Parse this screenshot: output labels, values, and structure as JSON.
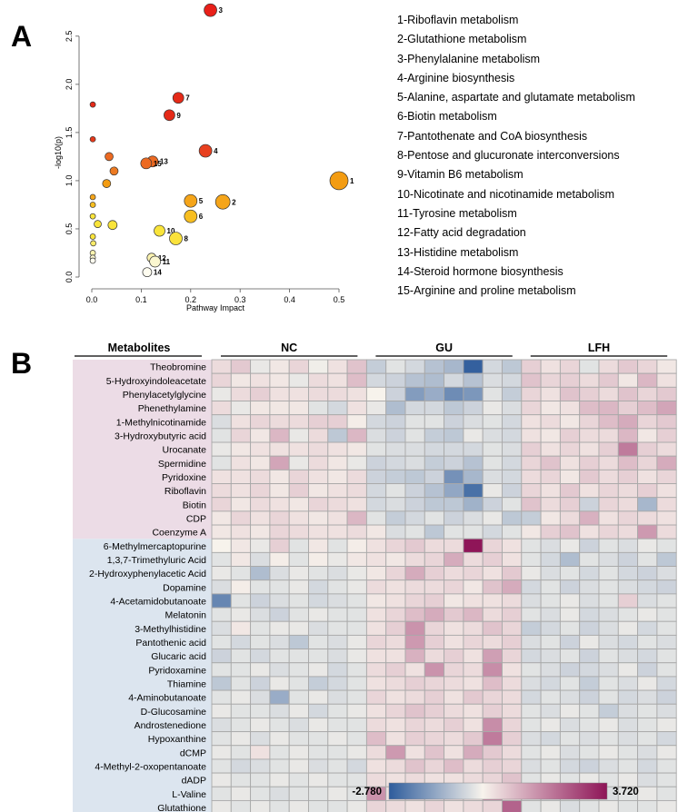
{
  "panels": {
    "a_letter": "A",
    "b_letter": "B"
  },
  "chart_data": [
    {
      "type": "scatter",
      "xlabel": "Pathway Impact",
      "ylabel": "-log10(p)",
      "xlim": [
        0,
        0.5
      ],
      "ylim": [
        0,
        2.8
      ],
      "x_ticks": [
        "0.0",
        "0.1",
        "0.2",
        "0.3",
        "0.4",
        "0.5"
      ],
      "y_ticks": [
        "0.0",
        "0.5",
        "1.0",
        "1.5",
        "2.0",
        "2.5"
      ],
      "grid": false,
      "points": [
        {
          "label": "1",
          "x": 0.5,
          "y": 1.0,
          "size": 10,
          "color": "#F39C12"
        },
        {
          "label": "2",
          "x": 0.265,
          "y": 0.78,
          "size": 8,
          "color": "#F5A51A"
        },
        {
          "label": "3",
          "x": 0.24,
          "y": 2.77,
          "size": 7,
          "color": "#E8201A"
        },
        {
          "label": "4",
          "x": 0.23,
          "y": 1.31,
          "size": 7,
          "color": "#E8401F"
        },
        {
          "label": "5",
          "x": 0.2,
          "y": 0.79,
          "size": 7,
          "color": "#F5A51A"
        },
        {
          "label": "6",
          "x": 0.2,
          "y": 0.63,
          "size": 7,
          "color": "#F7BE21"
        },
        {
          "label": "7",
          "x": 0.175,
          "y": 1.86,
          "size": 6,
          "color": "#E52A18"
        },
        {
          "label": "8",
          "x": 0.17,
          "y": 0.4,
          "size": 7,
          "color": "#FAE23C"
        },
        {
          "label": "9",
          "x": 0.157,
          "y": 1.68,
          "size": 6,
          "color": "#E52A18"
        },
        {
          "label": "10",
          "x": 0.137,
          "y": 0.48,
          "size": 6,
          "color": "#F9E43A"
        },
        {
          "label": "11",
          "x": 0.128,
          "y": 0.16,
          "size": 6,
          "color": "#FBF7D0"
        },
        {
          "label": "12",
          "x": 0.121,
          "y": 0.2,
          "size": 5,
          "color": "#FBF3B0"
        },
        {
          "label": "13",
          "x": 0.123,
          "y": 1.2,
          "size": 6,
          "color": "#EC6A22"
        },
        {
          "label": "14",
          "x": 0.112,
          "y": 0.05,
          "size": 5,
          "color": "#FFFDF0"
        },
        {
          "label": "15",
          "x": 0.11,
          "y": 1.18,
          "size": 6,
          "color": "#EC6A22"
        },
        {
          "label": "",
          "x": 0.045,
          "y": 1.1,
          "size": 4.5,
          "color": "#EC7A22"
        },
        {
          "label": "",
          "x": 0.035,
          "y": 1.25,
          "size": 4.5,
          "color": "#EC6A22"
        },
        {
          "label": "",
          "x": 0.03,
          "y": 0.97,
          "size": 4.5,
          "color": "#F39C12"
        },
        {
          "label": "",
          "x": 0.042,
          "y": 0.54,
          "size": 5,
          "color": "#F9E43A"
        },
        {
          "label": "",
          "x": 0.012,
          "y": 0.55,
          "size": 4,
          "color": "#F9E43A"
        },
        {
          "label": "",
          "x": 0.002,
          "y": 1.79,
          "size": 3,
          "color": "#E52A18"
        },
        {
          "label": "",
          "x": 0.002,
          "y": 1.43,
          "size": 3,
          "color": "#E5381A"
        },
        {
          "label": "",
          "x": 0.002,
          "y": 0.83,
          "size": 3,
          "color": "#F5A51A"
        },
        {
          "label": "",
          "x": 0.002,
          "y": 0.75,
          "size": 3,
          "color": "#F7BE21"
        },
        {
          "label": "",
          "x": 0.002,
          "y": 0.63,
          "size": 3,
          "color": "#F9E43A"
        },
        {
          "label": "",
          "x": 0.002,
          "y": 0.42,
          "size": 3,
          "color": "#F9E43A"
        },
        {
          "label": "",
          "x": 0.003,
          "y": 0.35,
          "size": 3,
          "color": "#FAEB6A"
        },
        {
          "label": "",
          "x": 0.002,
          "y": 0.25,
          "size": 3,
          "color": "#FBF3B0"
        },
        {
          "label": "",
          "x": 0.002,
          "y": 0.2,
          "size": 3,
          "color": "#FBF7D0"
        },
        {
          "label": "",
          "x": 0.002,
          "y": 0.17,
          "size": 3,
          "color": "#FFFDF0"
        }
      ],
      "legend_entries": [
        "1-Riboflavin metabolism",
        "2-Glutathione metabolism",
        "3-Phenylalanine metabolism",
        "4-Arginine biosynthesis",
        "5-Alanine, aspartate and glutamate metabolism",
        "6-Biotin metabolism",
        "7-Pantothenate and CoA biosynthesis",
        "8-Pentose and glucuronate interconversions",
        "9-Vitamin B6 metabolism",
        "10-Nicotinate and nicotinamide metabolism",
        "11-Tyrosine metabolism",
        "12-Fatty acid degradation",
        "13-Histidine metabolism",
        "14-Steroid hormone biosynthesis",
        "15-Arginine and proline metabolism"
      ]
    },
    {
      "type": "heatmap",
      "row_header": "Metabolites",
      "groups": [
        "NC",
        "GU",
        "LFH"
      ],
      "columns_per_group": 8,
      "rows": [
        "Theobromine",
        "5-Hydroxyindoleacetate",
        "Phenylacetylglycine",
        "Phenethylamine",
        "1-Methylnicotinamide",
        "3-Hydroxybutyric acid",
        "Urocanate",
        "Spermidine",
        "Pyridoxine",
        "Riboflavin",
        "Biotin",
        "CDP",
        "Coenzyme A",
        "6-Methylmercaptopurine",
        "1,3,7-Trimethyluric Acid",
        "2-Hydroxyphenylacetic Acid",
        "Dopamine",
        "4-Acetamidobutanoate",
        "Melatonin",
        "3-Methylhistidine",
        "Pantothenic acid",
        "Glucaric acid",
        "Pyridoxamine",
        "Thiamine",
        "4-Aminobutanoate",
        "D-Glucosamine",
        "Androstenedione",
        "Hypoxanthine",
        "dCMP",
        "4-Methyl-2-oxopentanoate",
        "dADP",
        "L-Valine",
        "Glutathione"
      ],
      "row_group_split": 13,
      "row_group_colors": [
        "#ECDCE6",
        "#DCE5EF"
      ],
      "colorscale": {
        "min": -2.78,
        "max": 3.72,
        "min_label": "-2.780",
        "max_label": "3.720",
        "low_color": "#2E5C9C",
        "mid_color": "#F7F3EC",
        "high_color": "#8E1457"
      },
      "values": [
        [
          0.4,
          0.7,
          -0.2,
          0.2,
          0.5,
          -0.1,
          0.3,
          0.8,
          -0.7,
          -0.3,
          -0.5,
          -0.9,
          -1.1,
          -2.7,
          -0.5,
          -0.8,
          0.6,
          0.3,
          0.5,
          -0.3,
          0.4,
          0.7,
          0.5,
          0.2
        ],
        [
          0.5,
          0.2,
          0.3,
          0.2,
          -0.2,
          0.4,
          0.3,
          0.9,
          -0.5,
          -0.6,
          -0.9,
          -1.0,
          -0.5,
          -0.9,
          -0.4,
          -0.5,
          0.8,
          0.5,
          0.6,
          0.4,
          0.7,
          0.2,
          1.0,
          0.3
        ],
        [
          -0.2,
          0.4,
          0.6,
          0.3,
          0.3,
          0.4,
          0.4,
          0.3,
          0.0,
          -0.6,
          -1.6,
          -1.3,
          -1.9,
          -1.7,
          -0.3,
          -0.7,
          0.5,
          0.3,
          0.8,
          0.6,
          0.4,
          0.8,
          0.5,
          0.7
        ],
        [
          0.4,
          -0.2,
          0.2,
          0.2,
          0.2,
          -0.3,
          -0.5,
          0.3,
          -0.2,
          -1.0,
          -0.5,
          -0.5,
          -0.8,
          -0.6,
          -0.2,
          -0.4,
          0.5,
          0.2,
          0.3,
          0.9,
          1.0,
          0.6,
          0.9,
          1.3
        ],
        [
          -0.4,
          0.3,
          0.5,
          0.4,
          0.4,
          0.6,
          0.6,
          0.1,
          -0.5,
          -0.6,
          -0.3,
          -0.3,
          -0.6,
          -0.4,
          -0.3,
          -0.5,
          0.3,
          0.4,
          0.2,
          0.5,
          0.9,
          1.2,
          0.5,
          0.7
        ],
        [
          -0.3,
          0.5,
          0.2,
          1.0,
          -0.2,
          0.4,
          -0.8,
          1.0,
          -0.4,
          -0.6,
          -0.3,
          -0.7,
          -0.8,
          -0.2,
          -0.4,
          -0.5,
          0.3,
          0.2,
          0.6,
          0.4,
          0.4,
          1.0,
          0.2,
          0.6
        ],
        [
          -0.2,
          0.2,
          0.3,
          0.3,
          0.3,
          0.4,
          0.3,
          0.2,
          -0.3,
          -0.4,
          -0.4,
          -0.5,
          -0.5,
          -0.5,
          -0.3,
          -0.4,
          0.6,
          0.3,
          0.5,
          0.3,
          0.6,
          2.0,
          0.6,
          0.4
        ],
        [
          -0.3,
          0.3,
          0.2,
          1.3,
          -0.2,
          0.4,
          0.2,
          -0.2,
          -0.6,
          -0.5,
          -0.4,
          -0.7,
          -0.6,
          -0.9,
          -0.3,
          -0.5,
          0.5,
          0.8,
          0.3,
          0.6,
          0.4,
          0.9,
          0.5,
          1.2
        ],
        [
          0.3,
          0.3,
          0.4,
          0.2,
          0.5,
          0.3,
          0.2,
          0.4,
          -0.6,
          -0.7,
          -0.8,
          -0.6,
          -1.8,
          -1.1,
          -0.4,
          -0.5,
          0.4,
          0.5,
          0.2,
          0.7,
          0.4,
          0.6,
          0.3,
          0.5
        ],
        [
          0.4,
          0.3,
          0.5,
          0.2,
          0.6,
          0.2,
          0.3,
          0.4,
          -0.5,
          -0.3,
          -0.6,
          -0.9,
          -1.4,
          -2.4,
          -0.2,
          -0.6,
          0.5,
          0.3,
          0.7,
          0.3,
          0.5,
          0.4,
          0.6,
          0.3
        ],
        [
          0.5,
          0.2,
          0.4,
          0.3,
          0.2,
          0.5,
          0.4,
          0.3,
          -0.5,
          -0.4,
          -0.6,
          -0.8,
          -0.8,
          -1.2,
          -0.6,
          -0.3,
          0.8,
          0.4,
          0.6,
          -0.6,
          0.5,
          0.4,
          -1.1,
          0.4
        ],
        [
          0.2,
          0.5,
          0.3,
          0.5,
          0.3,
          0.2,
          0.3,
          1.0,
          -0.3,
          -0.7,
          -0.5,
          -0.3,
          -0.6,
          -0.4,
          -0.2,
          -0.8,
          -0.7,
          0.2,
          0.4,
          1.1,
          0.3,
          0.5,
          0.4,
          0.3
        ],
        [
          0.2,
          0.3,
          0.2,
          0.5,
          0.4,
          0.3,
          0.3,
          0.4,
          0.2,
          -0.4,
          -0.3,
          -0.8,
          -0.3,
          -0.3,
          -0.5,
          -0.3,
          0.2,
          0.6,
          0.8,
          0.3,
          0.5,
          0.4,
          1.5,
          0.4
        ],
        [
          0.0,
          0.2,
          -0.2,
          0.6,
          -0.3,
          0.2,
          -0.3,
          0.1,
          0.3,
          0.5,
          0.7,
          0.4,
          0.4,
          3.7,
          0.5,
          0.3,
          -0.3,
          -0.4,
          -0.2,
          -0.6,
          -0.3,
          -0.4,
          -0.2,
          -0.3
        ],
        [
          -0.3,
          0.2,
          -0.4,
          0.1,
          -0.3,
          0.1,
          -0.2,
          0.2,
          0.3,
          0.2,
          0.4,
          0.5,
          1.2,
          0.4,
          0.6,
          0.3,
          -0.3,
          -0.5,
          -1.0,
          -0.3,
          -0.4,
          -0.6,
          -0.3,
          -0.8
        ],
        [
          -0.2,
          -0.3,
          -1.0,
          -0.4,
          -0.2,
          -0.3,
          -0.4,
          -0.2,
          0.2,
          0.5,
          1.2,
          0.6,
          0.4,
          0.5,
          0.3,
          0.7,
          -0.2,
          -0.4,
          -0.3,
          -0.5,
          -0.3,
          -0.5,
          -0.6,
          -0.4
        ],
        [
          -0.4,
          0.1,
          -0.3,
          -0.3,
          -0.2,
          -0.5,
          -0.3,
          -0.2,
          0.4,
          0.3,
          0.4,
          0.4,
          0.5,
          0.2,
          0.8,
          1.2,
          -0.5,
          -0.3,
          -0.6,
          -0.4,
          -0.3,
          -0.4,
          -0.5,
          -0.6
        ],
        [
          -2.0,
          -0.3,
          -0.6,
          -0.4,
          -0.3,
          -0.5,
          -0.4,
          -0.3,
          0.2,
          0.3,
          0.5,
          0.6,
          0.2,
          0.3,
          0.3,
          0.4,
          -0.4,
          -0.3,
          -0.2,
          -0.4,
          -0.3,
          0.6,
          -0.4,
          -0.3
        ],
        [
          -0.3,
          -0.2,
          -0.4,
          -0.6,
          -0.3,
          -0.2,
          -0.3,
          -0.3,
          0.3,
          0.5,
          0.9,
          1.2,
          0.7,
          1.0,
          0.4,
          0.6,
          -0.3,
          -0.4,
          -0.2,
          -0.5,
          -0.4,
          -0.3,
          -0.2,
          -0.3
        ],
        [
          -0.4,
          0.2,
          -0.3,
          -0.2,
          -0.2,
          -0.4,
          -0.3,
          -0.3,
          0.3,
          0.6,
          1.6,
          0.5,
          0.3,
          0.4,
          0.8,
          0.5,
          -0.7,
          -0.5,
          -0.3,
          -0.6,
          -0.4,
          -0.2,
          -0.5,
          -0.3
        ],
        [
          -0.3,
          -0.5,
          -0.3,
          -0.4,
          -0.8,
          -0.3,
          -0.4,
          -0.2,
          0.5,
          0.4,
          1.5,
          0.6,
          0.3,
          0.5,
          0.4,
          0.6,
          -0.4,
          -0.3,
          -0.6,
          -0.2,
          -0.4,
          -0.5,
          -0.3,
          -0.4
        ],
        [
          -0.6,
          -0.3,
          -0.5,
          -0.3,
          -0.3,
          -0.3,
          -0.4,
          -0.2,
          0.3,
          0.3,
          1.1,
          0.4,
          0.6,
          0.3,
          1.4,
          0.5,
          -0.5,
          -0.4,
          -0.3,
          -0.6,
          -0.3,
          -0.4,
          -0.5,
          -0.3
        ],
        [
          -0.3,
          -0.3,
          -0.2,
          -0.4,
          -0.3,
          -0.2,
          -0.5,
          -0.3,
          0.4,
          0.6,
          0.3,
          1.6,
          0.5,
          0.4,
          1.7,
          0.3,
          -0.3,
          -0.4,
          -0.6,
          -0.5,
          -0.4,
          -0.2,
          -0.6,
          -0.3
        ],
        [
          -0.8,
          -0.3,
          -0.6,
          -0.2,
          -0.3,
          -0.7,
          -0.5,
          -0.3,
          0.3,
          0.4,
          0.6,
          0.5,
          0.4,
          0.3,
          0.9,
          0.4,
          -0.4,
          -0.5,
          -0.3,
          -0.7,
          -0.3,
          -0.4,
          -0.2,
          -0.5
        ],
        [
          -0.3,
          -0.2,
          -0.4,
          -1.3,
          -0.3,
          -0.2,
          -0.4,
          -0.3,
          0.5,
          0.3,
          0.4,
          0.6,
          0.3,
          0.7,
          0.5,
          0.4,
          -0.5,
          -0.3,
          -0.4,
          -0.6,
          -0.3,
          -0.5,
          -0.4,
          -0.6
        ],
        [
          -0.2,
          -0.3,
          -0.3,
          -0.4,
          -0.2,
          -0.5,
          -0.3,
          -0.2,
          0.3,
          0.5,
          0.8,
          0.6,
          0.4,
          0.3,
          0.6,
          0.4,
          -0.3,
          -0.4,
          -0.2,
          -0.3,
          -0.7,
          -0.4,
          -0.3,
          -0.4
        ],
        [
          -0.4,
          -0.3,
          -0.2,
          -0.3,
          -0.4,
          -0.2,
          -0.3,
          -0.3,
          0.4,
          0.3,
          0.5,
          0.4,
          0.6,
          0.3,
          1.7,
          0.5,
          -0.3,
          -0.2,
          -0.4,
          -0.3,
          -0.2,
          -0.4,
          -0.3,
          -0.2
        ],
        [
          -0.3,
          -0.2,
          -0.4,
          -0.2,
          -0.3,
          -0.3,
          -0.2,
          -0.3,
          0.9,
          0.3,
          0.6,
          0.5,
          0.4,
          0.7,
          2.0,
          0.6,
          -0.4,
          -0.5,
          -0.3,
          -0.4,
          -0.3,
          -0.4,
          -0.3,
          -0.5
        ],
        [
          -0.2,
          -0.3,
          0.3,
          -0.3,
          -0.2,
          -0.3,
          -0.3,
          -0.2,
          0.4,
          1.5,
          0.3,
          0.8,
          0.3,
          1.2,
          0.7,
          0.4,
          -0.3,
          -0.2,
          -0.4,
          -0.3,
          -0.2,
          -0.3,
          -0.4,
          -0.2
        ],
        [
          -0.3,
          -0.5,
          -0.4,
          -0.3,
          -0.2,
          -0.4,
          -0.3,
          -0.5,
          0.3,
          0.4,
          0.8,
          0.5,
          0.9,
          0.4,
          0.6,
          0.5,
          -0.4,
          -0.3,
          -0.5,
          -0.6,
          -0.4,
          -0.3,
          -0.5,
          -0.3
        ],
        [
          -0.2,
          -0.3,
          -0.3,
          -0.2,
          -0.3,
          -0.2,
          -0.3,
          -0.3,
          0.4,
          0.3,
          0.4,
          0.3,
          0.3,
          0.4,
          0.5,
          0.8,
          -0.3,
          -0.2,
          -0.3,
          -0.2,
          -0.3,
          -0.2,
          -0.4,
          -0.3
        ],
        [
          -0.3,
          -0.2,
          -0.3,
          -0.4,
          -0.3,
          -0.3,
          -0.2,
          -0.3,
          1.6,
          0.3,
          0.5,
          0.3,
          0.4,
          0.3,
          1.8,
          0.3,
          -0.3,
          -0.4,
          -0.3,
          -0.2,
          -0.4,
          -0.3,
          -0.2,
          -0.3
        ],
        [
          -0.2,
          -0.3,
          -0.2,
          -0.3,
          -0.2,
          -0.3,
          -0.3,
          -0.2,
          0.5,
          0.4,
          0.3,
          0.5,
          0.3,
          0.4,
          0.5,
          2.4,
          -0.3,
          -0.2,
          -0.4,
          -0.3,
          -0.2,
          -0.3,
          -0.3,
          -0.2
        ]
      ]
    }
  ]
}
